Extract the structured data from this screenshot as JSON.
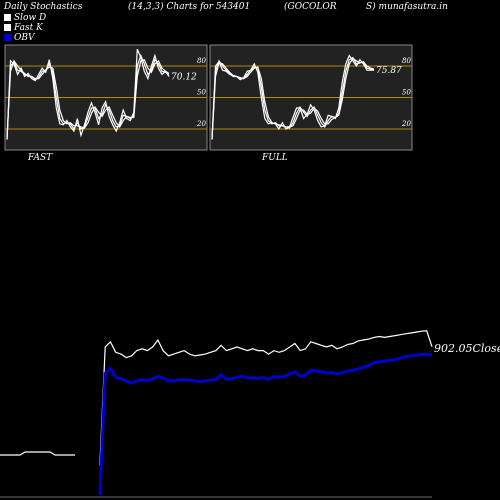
{
  "header": {
    "title": "Daily Stochastics",
    "params": "(14,3,3) Charts for 543401",
    "symbol": "(GOCOLOR",
    "site": "S) munafasutra.in"
  },
  "legend": [
    {
      "label": "Slow  D",
      "color": "#ffffff"
    },
    {
      "label": "Fast K",
      "color": "#ffffff"
    },
    {
      "label": "OBV",
      "color": "#0000cc"
    }
  ],
  "chart_data": [
    {
      "type": "line",
      "title": "FAST",
      "ylim": [
        0,
        100
      ],
      "yticks": [
        20,
        50,
        80
      ],
      "last_value_label": "70.12",
      "series": [
        {
          "values": [
            10,
            85,
            82,
            72,
            78,
            70,
            73,
            68,
            66,
            72,
            78,
            74,
            86,
            68,
            40,
            25,
            24,
            28,
            22,
            18,
            30,
            14,
            24,
            36,
            45,
            36,
            24,
            40,
            46,
            32,
            24,
            18,
            26,
            38,
            30,
            28,
            36,
            96,
            88,
            75,
            68,
            80,
            90,
            78,
            72,
            75,
            70
          ]
        },
        {
          "values": [
            10,
            80,
            84,
            76,
            75,
            72,
            71,
            70,
            67,
            69,
            75,
            76,
            82,
            74,
            50,
            30,
            25,
            26,
            25,
            20,
            26,
            20,
            22,
            31,
            40,
            40,
            30,
            34,
            43,
            38,
            28,
            22,
            23,
            33,
            32,
            30,
            33,
            80,
            90,
            82,
            72,
            76,
            86,
            82,
            75,
            74,
            72
          ]
        },
        {
          "values": [
            10,
            75,
            85,
            80,
            76,
            73,
            70,
            70,
            68,
            68,
            72,
            76,
            79,
            78,
            60,
            38,
            28,
            25,
            26,
            23,
            23,
            22,
            21,
            26,
            35,
            41,
            36,
            32,
            38,
            41,
            33,
            26,
            22,
            28,
            32,
            31,
            31,
            70,
            85,
            86,
            78,
            74,
            82,
            85,
            78,
            75,
            73
          ]
        }
      ]
    },
    {
      "type": "line",
      "title": "FULL",
      "ylim": [
        0,
        100
      ],
      "yticks": [
        20,
        50,
        80
      ],
      "last_value_label": "75.87",
      "series": [
        {
          "values": [
            10,
            80,
            84,
            76,
            75,
            72,
            71,
            70,
            67,
            69,
            75,
            76,
            82,
            74,
            50,
            30,
            25,
            26,
            25,
            20,
            26,
            20,
            22,
            31,
            40,
            40,
            30,
            34,
            43,
            38,
            28,
            22,
            23,
            33,
            32,
            30,
            40,
            65,
            82,
            90,
            85,
            80,
            86,
            82,
            76,
            76,
            76
          ]
        },
        {
          "values": [
            10,
            75,
            85,
            80,
            76,
            73,
            70,
            70,
            68,
            68,
            72,
            76,
            79,
            78,
            60,
            38,
            28,
            25,
            26,
            23,
            23,
            22,
            21,
            26,
            35,
            41,
            36,
            32,
            38,
            41,
            33,
            26,
            22,
            28,
            32,
            31,
            35,
            55,
            75,
            86,
            88,
            82,
            83,
            84,
            78,
            77,
            76
          ]
        },
        {
          "values": [
            10,
            70,
            83,
            82,
            78,
            74,
            71,
            70,
            69,
            68,
            70,
            74,
            78,
            79,
            68,
            46,
            32,
            26,
            25,
            24,
            23,
            22,
            22,
            23,
            30,
            38,
            38,
            34,
            35,
            40,
            37,
            30,
            25,
            25,
            29,
            31,
            33,
            48,
            68,
            82,
            87,
            85,
            83,
            84,
            80,
            78,
            77
          ]
        }
      ]
    },
    {
      "type": "line",
      "title": "",
      "last_value_label": "902.05Close",
      "series": [
        {
          "name": "OBV",
          "color": "#0000cc",
          "values": [
            null,
            null,
            null,
            null,
            null,
            null,
            null,
            null,
            null,
            null,
            null,
            null,
            null,
            null,
            null,
            null,
            null,
            null,
            -20,
            660,
            720,
            610,
            590,
            560,
            530,
            560,
            580,
            565,
            590,
            620,
            600,
            560,
            560,
            575,
            580,
            570,
            560,
            555,
            560,
            570,
            580,
            640,
            580,
            590,
            610,
            620,
            600,
            600,
            595,
            605,
            580,
            620,
            610,
            620,
            650,
            680,
            620,
            640,
            700,
            690,
            680,
            665,
            670,
            650,
            670,
            690,
            700,
            720,
            740,
            760,
            800,
            810,
            820,
            830,
            840,
            860,
            880,
            890,
            900,
            905,
            910,
            900
          ]
        },
        {
          "name": "Close",
          "color": "#ffffff",
          "values": [
            null,
            null,
            null,
            null,
            null,
            null,
            null,
            null,
            null,
            null,
            null,
            null,
            null,
            null,
            null,
            null,
            null,
            null,
            230,
            900,
            930,
            870,
            860,
            840,
            850,
            880,
            890,
            880,
            900,
            940,
            880,
            850,
            860,
            870,
            880,
            860,
            850,
            855,
            860,
            870,
            880,
            910,
            880,
            890,
            900,
            890,
            880,
            890,
            880,
            880,
            860,
            880,
            870,
            880,
            900,
            920,
            880,
            890,
            930,
            920,
            910,
            900,
            910,
            890,
            900,
            915,
            920,
            935,
            940,
            945,
            955,
            960,
            955,
            960,
            965,
            970,
            975,
            980,
            985,
            990,
            992,
            902.05
          ]
        }
      ]
    }
  ]
}
